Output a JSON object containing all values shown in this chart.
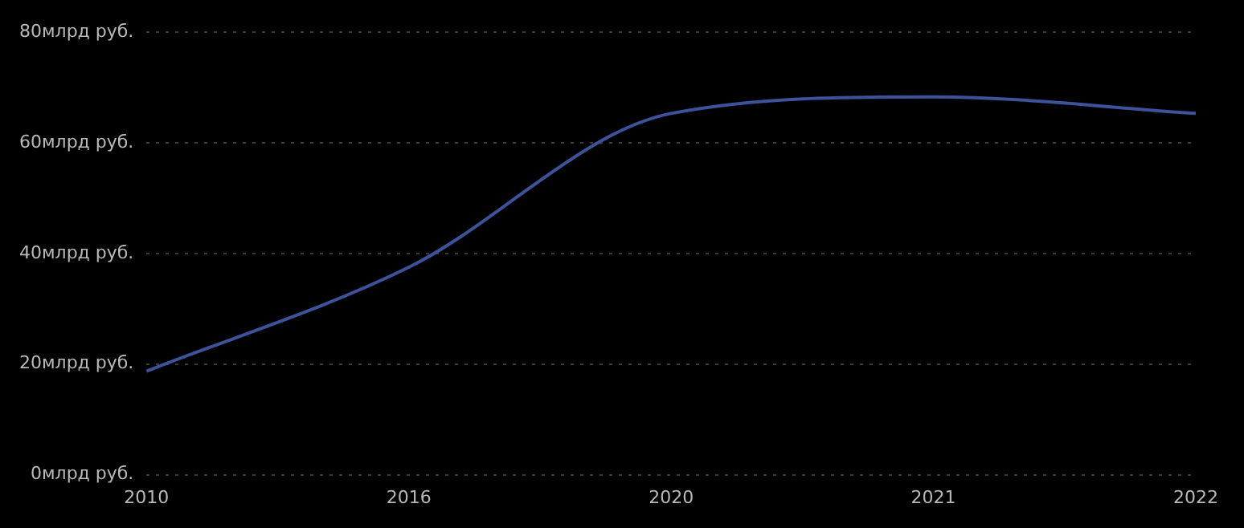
{
  "chart_data": {
    "type": "line",
    "categories": [
      "2010",
      "2016",
      "2020",
      "2021",
      "2022"
    ],
    "series": [
      {
        "color": "#3d5299",
        "values": [
          18.7,
          37.5,
          65.3,
          68.3,
          65.3
        ]
      }
    ],
    "ylim": [
      0,
      80
    ],
    "yticks": [
      {
        "value": 0,
        "label": "0млрд руб."
      },
      {
        "value": 20,
        "label": "20млрд руб."
      },
      {
        "value": 40,
        "label": "40млрд руб."
      },
      {
        "value": 60,
        "label": "60млрд руб."
      },
      {
        "value": 80,
        "label": "80млрд руб."
      }
    ],
    "grid": "y",
    "legend": false,
    "marker": "none",
    "line_style": "solid"
  }
}
